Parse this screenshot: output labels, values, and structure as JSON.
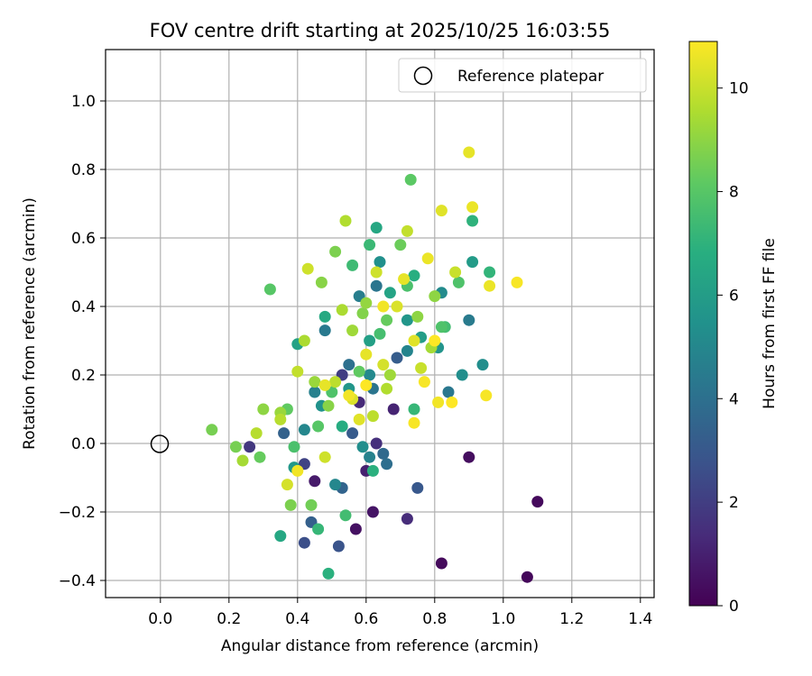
{
  "chart_data": {
    "type": "scatter",
    "title": "FOV centre drift starting at 2025/10/25 16:03:55",
    "xlabel": "Angular distance from reference (arcmin)",
    "ylabel": "Rotation from reference (arcmin)",
    "xlim": [
      -0.16,
      1.44
    ],
    "ylim": [
      -0.45,
      1.15
    ],
    "xticks": [
      0.0,
      0.2,
      0.4,
      0.6,
      0.8,
      1.0,
      1.2,
      1.4
    ],
    "xtick_labels": [
      "0.0",
      "0.2",
      "0.4",
      "0.6",
      "0.8",
      "1.0",
      "1.2",
      "1.4"
    ],
    "yticks": [
      -0.4,
      -0.2,
      0.0,
      0.2,
      0.4,
      0.6,
      0.8,
      1.0
    ],
    "ytick_labels": [
      "−0.4",
      "−0.2",
      "0.0",
      "0.2",
      "0.4",
      "0.6",
      "0.8",
      "1.0"
    ],
    "grid": true,
    "legend": {
      "placement": "upper right",
      "entries": [
        "Reference platepar"
      ]
    },
    "reference_point": {
      "x": 0.0,
      "y": 0.0,
      "label": "Reference platepar"
    },
    "colorbar": {
      "label": "Hours from first FF file",
      "colormap": "viridis",
      "range": [
        0,
        10.9
      ],
      "ticks": [
        0,
        2,
        4,
        6,
        8,
        10
      ],
      "tick_labels": [
        "0",
        "2",
        "4",
        "6",
        "8",
        "10"
      ]
    },
    "points": [
      [
        1.07,
        -0.39,
        0.2
      ],
      [
        0.82,
        -0.35,
        0.3
      ],
      [
        1.1,
        -0.17,
        0.3
      ],
      [
        0.9,
        -0.04,
        0.4
      ],
      [
        0.57,
        -0.25,
        0.5
      ],
      [
        0.62,
        -0.2,
        0.6
      ],
      [
        0.45,
        -0.11,
        0.8
      ],
      [
        0.6,
        -0.08,
        1.0
      ],
      [
        0.68,
        0.1,
        1.1
      ],
      [
        0.72,
        -0.22,
        1.4
      ],
      [
        0.58,
        0.12,
        1.3
      ],
      [
        0.63,
        0.0,
        1.5
      ],
      [
        0.26,
        -0.01,
        1.8
      ],
      [
        0.53,
        0.2,
        2.0
      ],
      [
        0.42,
        -0.06,
        2.2
      ],
      [
        0.42,
        -0.29,
        2.6
      ],
      [
        0.52,
        -0.3,
        2.8
      ],
      [
        0.75,
        -0.13,
        3.0
      ],
      [
        0.56,
        0.03,
        3.1
      ],
      [
        0.69,
        0.25,
        3.2
      ],
      [
        0.44,
        -0.23,
        3.3
      ],
      [
        0.36,
        0.03,
        3.4
      ],
      [
        0.53,
        -0.13,
        3.5
      ],
      [
        0.65,
        -0.03,
        3.7
      ],
      [
        0.66,
        -0.06,
        3.9
      ],
      [
        0.55,
        0.23,
        4.0
      ],
      [
        0.63,
        0.46,
        4.2
      ],
      [
        0.62,
        0.16,
        4.2
      ],
      [
        0.84,
        0.15,
        4.3
      ],
      [
        0.48,
        0.33,
        4.4
      ],
      [
        0.9,
        0.36,
        4.5
      ],
      [
        0.58,
        0.43,
        4.6
      ],
      [
        0.45,
        0.15,
        4.7
      ],
      [
        0.61,
        -0.04,
        4.8
      ],
      [
        0.72,
        0.27,
        4.9
      ],
      [
        0.42,
        0.04,
        5.0
      ],
      [
        0.51,
        -0.12,
        5.0
      ],
      [
        0.61,
        0.2,
        5.1
      ],
      [
        0.82,
        0.44,
        5.2
      ],
      [
        0.59,
        -0.01,
        5.3
      ],
      [
        0.88,
        0.2,
        5.3
      ],
      [
        0.94,
        0.23,
        5.3
      ],
      [
        0.64,
        0.53,
        5.4
      ],
      [
        0.47,
        0.11,
        5.5
      ],
      [
        0.81,
        0.28,
        5.6
      ],
      [
        0.55,
        0.16,
        5.7
      ],
      [
        0.72,
        0.36,
        5.7
      ],
      [
        0.39,
        -0.07,
        5.8
      ],
      [
        0.91,
        0.53,
        5.9
      ],
      [
        0.76,
        0.31,
        6.0
      ],
      [
        0.61,
        0.3,
        6.1
      ],
      [
        0.4,
        0.29,
        6.2
      ],
      [
        0.67,
        0.44,
        6.3
      ],
      [
        0.35,
        -0.27,
        6.5
      ],
      [
        0.63,
        0.63,
        6.5
      ],
      [
        0.48,
        0.37,
        6.6
      ],
      [
        0.53,
        0.05,
        6.7
      ],
      [
        0.74,
        0.49,
        6.8
      ],
      [
        0.49,
        -0.38,
        6.9
      ],
      [
        0.62,
        -0.08,
        6.9
      ],
      [
        0.91,
        0.65,
        7.0
      ],
      [
        0.96,
        0.5,
        7.1
      ],
      [
        0.74,
        0.1,
        7.2
      ],
      [
        0.46,
        -0.25,
        7.2
      ],
      [
        0.61,
        0.58,
        7.3
      ],
      [
        0.56,
        0.52,
        7.4
      ],
      [
        0.83,
        0.34,
        7.5
      ],
      [
        0.54,
        -0.21,
        7.5
      ],
      [
        0.64,
        0.32,
        7.6
      ],
      [
        0.39,
        -0.01,
        7.7
      ],
      [
        0.72,
        0.46,
        7.7
      ],
      [
        0.82,
        0.34,
        7.8
      ],
      [
        0.5,
        0.15,
        7.8
      ],
      [
        0.87,
        0.47,
        7.8
      ],
      [
        0.32,
        0.45,
        8.0
      ],
      [
        0.46,
        0.05,
        8.0
      ],
      [
        0.73,
        0.77,
        8.1
      ],
      [
        0.58,
        0.21,
        8.2
      ],
      [
        0.37,
        0.1,
        8.2
      ],
      [
        0.29,
        -0.04,
        8.3
      ],
      [
        0.66,
        0.36,
        8.3
      ],
      [
        0.7,
        0.58,
        8.4
      ],
      [
        0.44,
        -0.18,
        8.5
      ],
      [
        0.22,
        -0.01,
        8.6
      ],
      [
        0.15,
        0.04,
        8.6
      ],
      [
        0.51,
        0.56,
        8.7
      ],
      [
        0.38,
        -0.18,
        8.7
      ],
      [
        0.59,
        0.38,
        8.8
      ],
      [
        0.47,
        0.47,
        8.9
      ],
      [
        0.49,
        0.11,
        8.9
      ],
      [
        0.75,
        0.37,
        9.0
      ],
      [
        0.8,
        0.43,
        9.0
      ],
      [
        0.3,
        0.1,
        9.0
      ],
      [
        0.6,
        0.41,
        9.1
      ],
      [
        0.35,
        0.09,
        9.2
      ],
      [
        0.45,
        0.18,
        9.2
      ],
      [
        0.56,
        0.33,
        9.3
      ],
      [
        0.67,
        0.2,
        9.3
      ],
      [
        0.24,
        -0.05,
        9.4
      ],
      [
        0.79,
        0.28,
        9.4
      ],
      [
        0.42,
        0.3,
        9.5
      ],
      [
        0.53,
        0.39,
        9.5
      ],
      [
        0.54,
        0.65,
        9.6
      ],
      [
        0.66,
        0.16,
        9.6
      ],
      [
        0.35,
        0.07,
        9.7
      ],
      [
        0.28,
        0.03,
        9.7
      ],
      [
        0.51,
        0.18,
        9.8
      ],
      [
        0.62,
        0.08,
        9.8
      ],
      [
        0.72,
        0.62,
        9.9
      ],
      [
        0.4,
        0.21,
        9.9
      ],
      [
        0.86,
        0.5,
        10.0
      ],
      [
        0.76,
        0.22,
        10.0
      ],
      [
        0.48,
        -0.04,
        10.1
      ],
      [
        0.63,
        0.5,
        10.1
      ],
      [
        0.43,
        0.51,
        10.1
      ],
      [
        0.37,
        -0.12,
        10.2
      ],
      [
        0.65,
        0.23,
        10.2
      ],
      [
        0.56,
        0.13,
        10.3
      ],
      [
        0.69,
        0.4,
        10.3
      ],
      [
        0.74,
        0.3,
        10.4
      ],
      [
        0.82,
        0.68,
        10.4
      ],
      [
        0.58,
        0.07,
        10.4
      ],
      [
        0.48,
        0.17,
        10.5
      ],
      [
        0.6,
        0.26,
        10.5
      ],
      [
        0.71,
        0.48,
        10.5
      ],
      [
        0.91,
        0.69,
        10.6
      ],
      [
        0.96,
        0.46,
        10.6
      ],
      [
        0.78,
        0.54,
        10.6
      ],
      [
        0.4,
        -0.08,
        10.7
      ],
      [
        0.55,
        0.14,
        10.7
      ],
      [
        0.65,
        0.4,
        10.7
      ],
      [
        0.81,
        0.12,
        10.7
      ],
      [
        0.9,
        0.85,
        10.5
      ],
      [
        0.74,
        0.06,
        10.8
      ],
      [
        0.95,
        0.14,
        10.8
      ],
      [
        1.04,
        0.47,
        10.8
      ],
      [
        0.77,
        0.18,
        10.8
      ],
      [
        0.8,
        0.3,
        10.9
      ],
      [
        0.85,
        0.12,
        10.9
      ],
      [
        0.6,
        0.17,
        10.9
      ]
    ]
  }
}
